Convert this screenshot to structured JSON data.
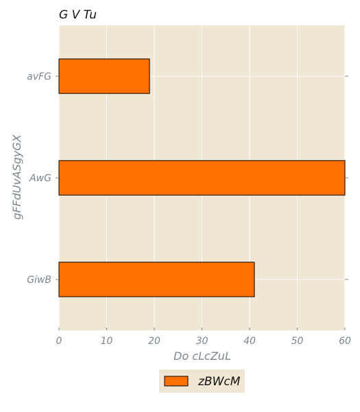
{
  "chart_data": {
    "type": "bar",
    "orientation": "horizontal",
    "title": "G V Tu",
    "xlabel": "Do  cLcZuL",
    "ylabel": "gFFdUvASgyGX",
    "categories": [
      "avFG",
      "AwG",
      "GiwB"
    ],
    "series": [
      {
        "name": "zBWcM",
        "values": [
          19,
          60,
          41
        ],
        "color": "#ff7001"
      }
    ],
    "xlim": [
      0,
      60
    ],
    "xticks": [
      0,
      10,
      20,
      30,
      40,
      50,
      60
    ],
    "grid": true,
    "legend_position": "bottom-center",
    "background_color": "#efe7d3",
    "grid_color": "#ffffff"
  }
}
